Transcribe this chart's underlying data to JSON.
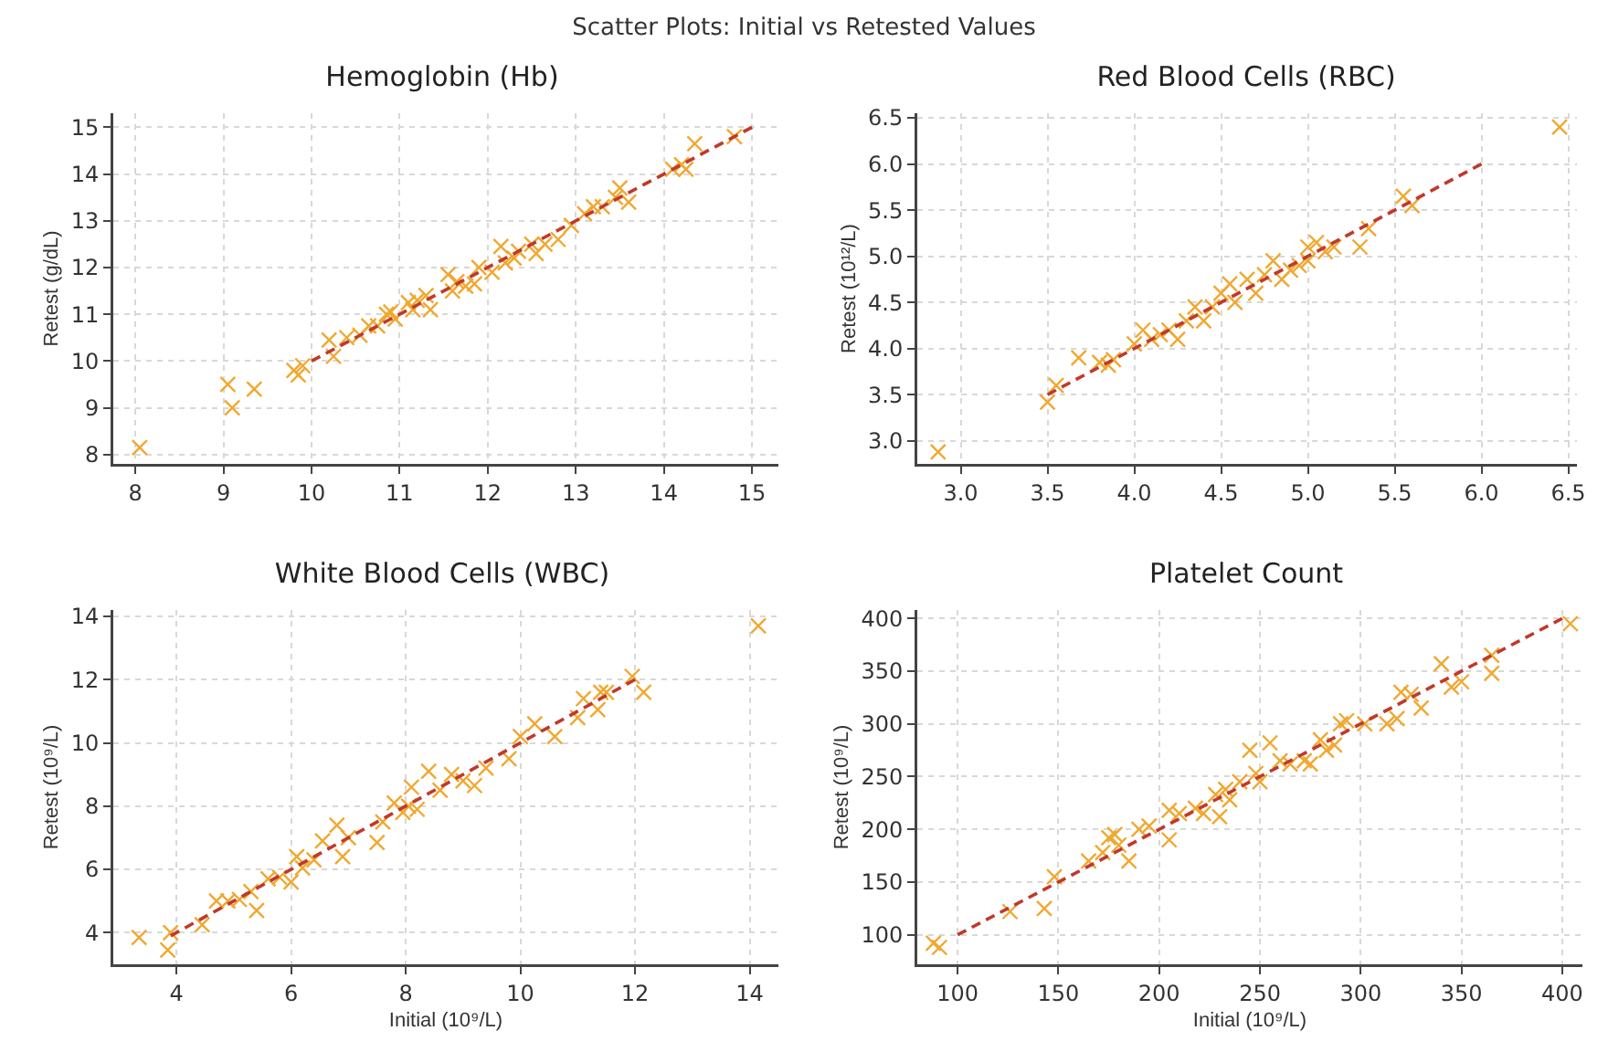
{
  "chart_data": [
    {
      "type": "scatter",
      "title": "Hemoglobin (Hb)",
      "ylabel": "Retest (g/dL)",
      "annotations": [
        "Scatter Plots: Initial vs Retested Values"
      ],
      "xlim": [
        7.75,
        15.3
      ],
      "ylim": [
        7.8,
        15.3
      ],
      "xticks": [
        8,
        9,
        10,
        11,
        12,
        13,
        14,
        15
      ],
      "yticks": [
        8,
        9,
        10,
        11,
        12,
        13,
        14,
        15
      ],
      "grid": true,
      "series": [
        {
          "marker": "cross",
          "color": "#f0a830",
          "x": [
            8.05,
            9.05,
            9.1,
            9.35,
            9.8,
            9.9,
            9.85,
            10.2,
            10.25,
            10.4,
            10.55,
            10.65,
            10.75,
            10.85,
            10.9,
            10.95,
            11.1,
            11.15,
            11.2,
            11.3,
            11.35,
            11.55,
            11.6,
            11.65,
            11.75,
            11.85,
            11.9,
            12.05,
            12.15,
            12.2,
            12.3,
            12.35,
            12.5,
            12.55,
            12.65,
            12.8,
            12.95,
            13.1,
            13.2,
            13.3,
            13.45,
            13.5,
            13.6,
            14.1,
            14.2,
            14.25,
            14.35,
            14.8
          ],
          "values": [
            8.15,
            9.5,
            9.0,
            9.4,
            9.8,
            9.9,
            9.7,
            10.45,
            10.1,
            10.5,
            10.55,
            10.75,
            10.75,
            11.0,
            11.05,
            10.9,
            11.25,
            11.1,
            11.3,
            11.4,
            11.1,
            11.85,
            11.5,
            11.7,
            11.6,
            11.65,
            12.0,
            11.9,
            12.45,
            12.1,
            12.2,
            12.35,
            12.5,
            12.3,
            12.5,
            12.6,
            12.9,
            13.15,
            13.3,
            13.3,
            13.5,
            13.7,
            13.4,
            14.1,
            14.2,
            14.1,
            14.65,
            14.8
          ]
        },
        {
          "type": "line",
          "line_style": "dashed",
          "color": "#c0392b",
          "x": [
            10,
            15
          ],
          "values": [
            10,
            15
          ]
        }
      ]
    },
    {
      "type": "scatter",
      "title": "Red Blood Cells (RBC)",
      "ylabel": "Retest (10¹²/L)",
      "xlim": [
        2.75,
        6.55
      ],
      "ylim": [
        2.75,
        6.55
      ],
      "xticks": [
        {
          "value": 3,
          "label": "3.0"
        },
        3.5,
        {
          "value": 4,
          "label": "4.0"
        },
        4.5,
        {
          "value": 5,
          "label": "5.0"
        },
        5.5,
        {
          "value": 6,
          "label": "6.0"
        },
        6.5
      ],
      "yticks": [
        {
          "value": 3,
          "label": "3.0"
        },
        3.5,
        {
          "value": 4,
          "label": "4.0"
        },
        4.5,
        {
          "value": 5,
          "label": "5.0"
        },
        5.5,
        {
          "value": 6,
          "label": "6.0"
        },
        6.5
      ],
      "grid": true,
      "series": [
        {
          "marker": "cross",
          "color": "#f0a830",
          "x": [
            2.87,
            3.5,
            3.55,
            3.68,
            3.8,
            3.85,
            3.88,
            4.0,
            4.05,
            4.1,
            4.15,
            4.2,
            4.25,
            4.3,
            4.35,
            4.4,
            4.45,
            4.5,
            4.55,
            4.58,
            4.65,
            4.7,
            4.75,
            4.8,
            4.85,
            4.9,
            4.95,
            5.0,
            5.0,
            5.05,
            5.1,
            5.15,
            5.3,
            5.35,
            5.55,
            5.6,
            6.45
          ],
          "values": [
            2.88,
            3.42,
            3.6,
            3.9,
            3.85,
            3.82,
            3.88,
            4.05,
            4.2,
            4.1,
            4.15,
            4.2,
            4.1,
            4.3,
            4.45,
            4.3,
            4.45,
            4.6,
            4.7,
            4.5,
            4.75,
            4.6,
            4.8,
            4.95,
            4.75,
            4.85,
            4.9,
            5.1,
            4.95,
            5.15,
            5.05,
            5.1,
            5.1,
            5.3,
            5.65,
            5.55,
            6.4
          ]
        },
        {
          "type": "line",
          "line_style": "dashed",
          "color": "#c0392b",
          "x": [
            3.5,
            6.0
          ],
          "values": [
            3.5,
            6.0
          ]
        }
      ]
    },
    {
      "type": "scatter",
      "title": "White Blood Cells (WBC)",
      "xlabel": "Initial (10⁹/L)",
      "ylabel": "Retest (10⁹/L)",
      "xlim": [
        2.9,
        14.5
      ],
      "ylim": [
        3.0,
        14.2
      ],
      "xticks": [
        4,
        6,
        8,
        10,
        12,
        14
      ],
      "yticks": [
        4,
        6,
        8,
        10,
        12,
        14
      ],
      "grid": true,
      "series": [
        {
          "marker": "cross",
          "color": "#f0a830",
          "x": [
            3.35,
            3.85,
            3.9,
            4.45,
            4.7,
            4.9,
            5.1,
            5.3,
            5.4,
            5.6,
            5.8,
            6.0,
            6.1,
            6.2,
            6.4,
            6.55,
            6.8,
            6.9,
            7.0,
            7.5,
            7.6,
            7.8,
            7.95,
            8.05,
            8.1,
            8.2,
            8.4,
            8.6,
            8.8,
            9.0,
            9.2,
            9.4,
            9.8,
            10.0,
            10.25,
            10.6,
            11.0,
            11.1,
            11.35,
            11.4,
            11.5,
            11.95,
            12.15,
            14.15
          ],
          "values": [
            3.85,
            3.45,
            4.0,
            4.25,
            5.0,
            5.0,
            5.05,
            5.3,
            4.7,
            5.7,
            5.75,
            5.6,
            6.4,
            6.05,
            6.3,
            6.9,
            7.4,
            6.4,
            7.0,
            6.85,
            7.5,
            8.1,
            7.8,
            8.0,
            8.6,
            7.9,
            9.1,
            8.5,
            9.0,
            8.8,
            8.65,
            9.2,
            9.5,
            10.2,
            10.6,
            10.2,
            10.8,
            11.4,
            11.05,
            11.6,
            11.6,
            12.1,
            11.6,
            13.7
          ]
        },
        {
          "type": "line",
          "line_style": "dashed",
          "color": "#c0392b",
          "x": [
            3.9,
            12
          ],
          "values": [
            3.9,
            12
          ]
        }
      ]
    },
    {
      "type": "scatter",
      "title": "Platelet Count",
      "xlabel": "Initial (10⁹/L)",
      "ylabel": "Retest (10⁹/L)",
      "xlim": [
        80,
        410
      ],
      "ylim": [
        72,
        408
      ],
      "xticks": [
        100,
        150,
        200,
        250,
        300,
        350,
        400
      ],
      "yticks": [
        100,
        150,
        200,
        250,
        300,
        350,
        400
      ],
      "grid": true,
      "series": [
        {
          "marker": "cross",
          "color": "#f0a830",
          "x": [
            88,
            91,
            126,
            143,
            148,
            165,
            172,
            175,
            178,
            180,
            185,
            190,
            195,
            205,
            205,
            210,
            218,
            222,
            228,
            230,
            233,
            235,
            240,
            245,
            248,
            250,
            255,
            260,
            265,
            272,
            275,
            280,
            283,
            287,
            290,
            293,
            302,
            313,
            318,
            320,
            325,
            330,
            340,
            345,
            350,
            365,
            365,
            404
          ],
          "values": [
            92,
            88,
            122,
            125,
            155,
            170,
            178,
            192,
            195,
            185,
            170,
            200,
            203,
            218,
            190,
            215,
            220,
            215,
            233,
            212,
            238,
            228,
            245,
            275,
            253,
            245,
            282,
            265,
            262,
            265,
            262,
            285,
            275,
            280,
            300,
            303,
            300,
            300,
            305,
            330,
            328,
            315,
            357,
            335,
            340,
            348,
            365,
            395
          ]
        },
        {
          "type": "line",
          "line_style": "dashed",
          "color": "#c0392b",
          "x": [
            100,
            400
          ],
          "values": [
            100,
            400
          ]
        }
      ]
    }
  ]
}
